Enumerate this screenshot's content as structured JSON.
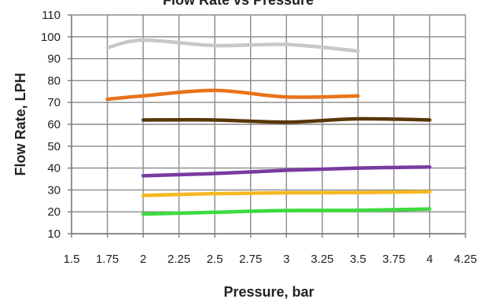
{
  "chart_data": {
    "type": "line",
    "title": "Flow Rate vs Pressure",
    "xlabel": "Pressure, bar",
    "ylabel": "Flow Rate, LPH",
    "xlim": [
      1.5,
      4.25
    ],
    "ylim": [
      10,
      110
    ],
    "x_ticks": [
      "1.5",
      "1.75",
      "2",
      "2.25",
      "2.5",
      "2.75",
      "3",
      "3.25",
      "3.5",
      "3.75",
      "4",
      "4.25"
    ],
    "y_ticks": [
      "10",
      "20",
      "30",
      "40",
      "50",
      "60",
      "70",
      "80",
      "90",
      "100",
      "110"
    ],
    "grid": true,
    "series": [
      {
        "color": "#c8c8c8",
        "x": [
          1.75,
          2.0,
          2.5,
          3.0,
          3.5
        ],
        "y": [
          95,
          98.5,
          96,
          96.5,
          93.5
        ]
      },
      {
        "color": "#e8731a",
        "x": [
          1.75,
          2.0,
          2.5,
          3.0,
          3.5
        ],
        "y": [
          71.5,
          73,
          75.5,
          72.5,
          73
        ]
      },
      {
        "color": "#5a3608",
        "x": [
          2.0,
          2.5,
          3.0,
          3.5,
          4.0
        ],
        "y": [
          62,
          62,
          61,
          62.5,
          62
        ]
      },
      {
        "color": "#7a3aa0",
        "x": [
          2.0,
          2.5,
          3.0,
          3.5,
          4.0
        ],
        "y": [
          36.5,
          37.5,
          39,
          40,
          40.5
        ]
      },
      {
        "color": "#f5b820",
        "x": [
          2.0,
          2.5,
          3.0,
          3.5,
          4.0
        ],
        "y": [
          27.5,
          28.3,
          28.7,
          28.8,
          29.2
        ]
      },
      {
        "color": "#3ddb3d",
        "x": [
          2.0,
          2.5,
          3.0,
          3.5,
          4.0
        ],
        "y": [
          19,
          19.8,
          20.6,
          20.7,
          21.3
        ]
      }
    ]
  }
}
